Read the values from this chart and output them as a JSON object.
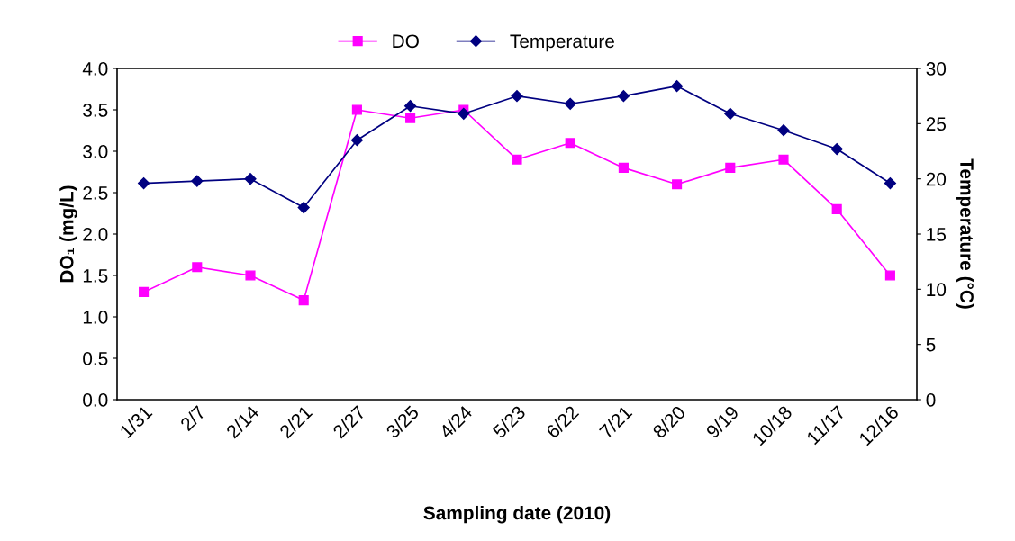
{
  "chart_data": {
    "type": "line",
    "xlabel": "Sampling date (2010)",
    "ylabel": "DO₁ (mg/L)",
    "y2label": "Temperature (°C)",
    "categories": [
      "1/31",
      "2/7",
      "2/14",
      "2/21",
      "2/27",
      "3/25",
      "4/24",
      "5/23",
      "6/22",
      "7/21",
      "8/20",
      "9/19",
      "10/18",
      "11/17",
      "12/16"
    ],
    "series": [
      {
        "name": "DO",
        "color": "#ff00ff",
        "marker": "square",
        "values": [
          1.3,
          1.6,
          1.5,
          1.2,
          3.5,
          3.4,
          3.5,
          2.9,
          3.1,
          2.8,
          2.6,
          2.8,
          2.9,
          2.3,
          1.5
        ]
      },
      {
        "name": "Temperature",
        "color": "#000080",
        "marker": "diamond",
        "axis": "y2",
        "values": [
          19.6,
          19.8,
          20.0,
          17.4,
          23.5,
          26.6,
          25.9,
          27.5,
          26.8,
          27.5,
          28.4,
          25.9,
          24.4,
          22.7,
          19.6
        ]
      }
    ],
    "ylim": [
      0,
      4
    ],
    "yticks": [
      {
        "value": 0,
        "label": "0.0"
      },
      0.5,
      {
        "value": 1,
        "label": "1.0"
      },
      1.5,
      {
        "value": 2,
        "label": "2.0"
      },
      2.5,
      {
        "value": 3,
        "label": "3.0"
      },
      3.5,
      {
        "value": 4,
        "label": "4.0"
      }
    ],
    "y2lim": [
      0,
      30
    ],
    "y2ticks": [
      0,
      5,
      10,
      15,
      20,
      25,
      30
    ],
    "grid": false,
    "legend": "top"
  }
}
